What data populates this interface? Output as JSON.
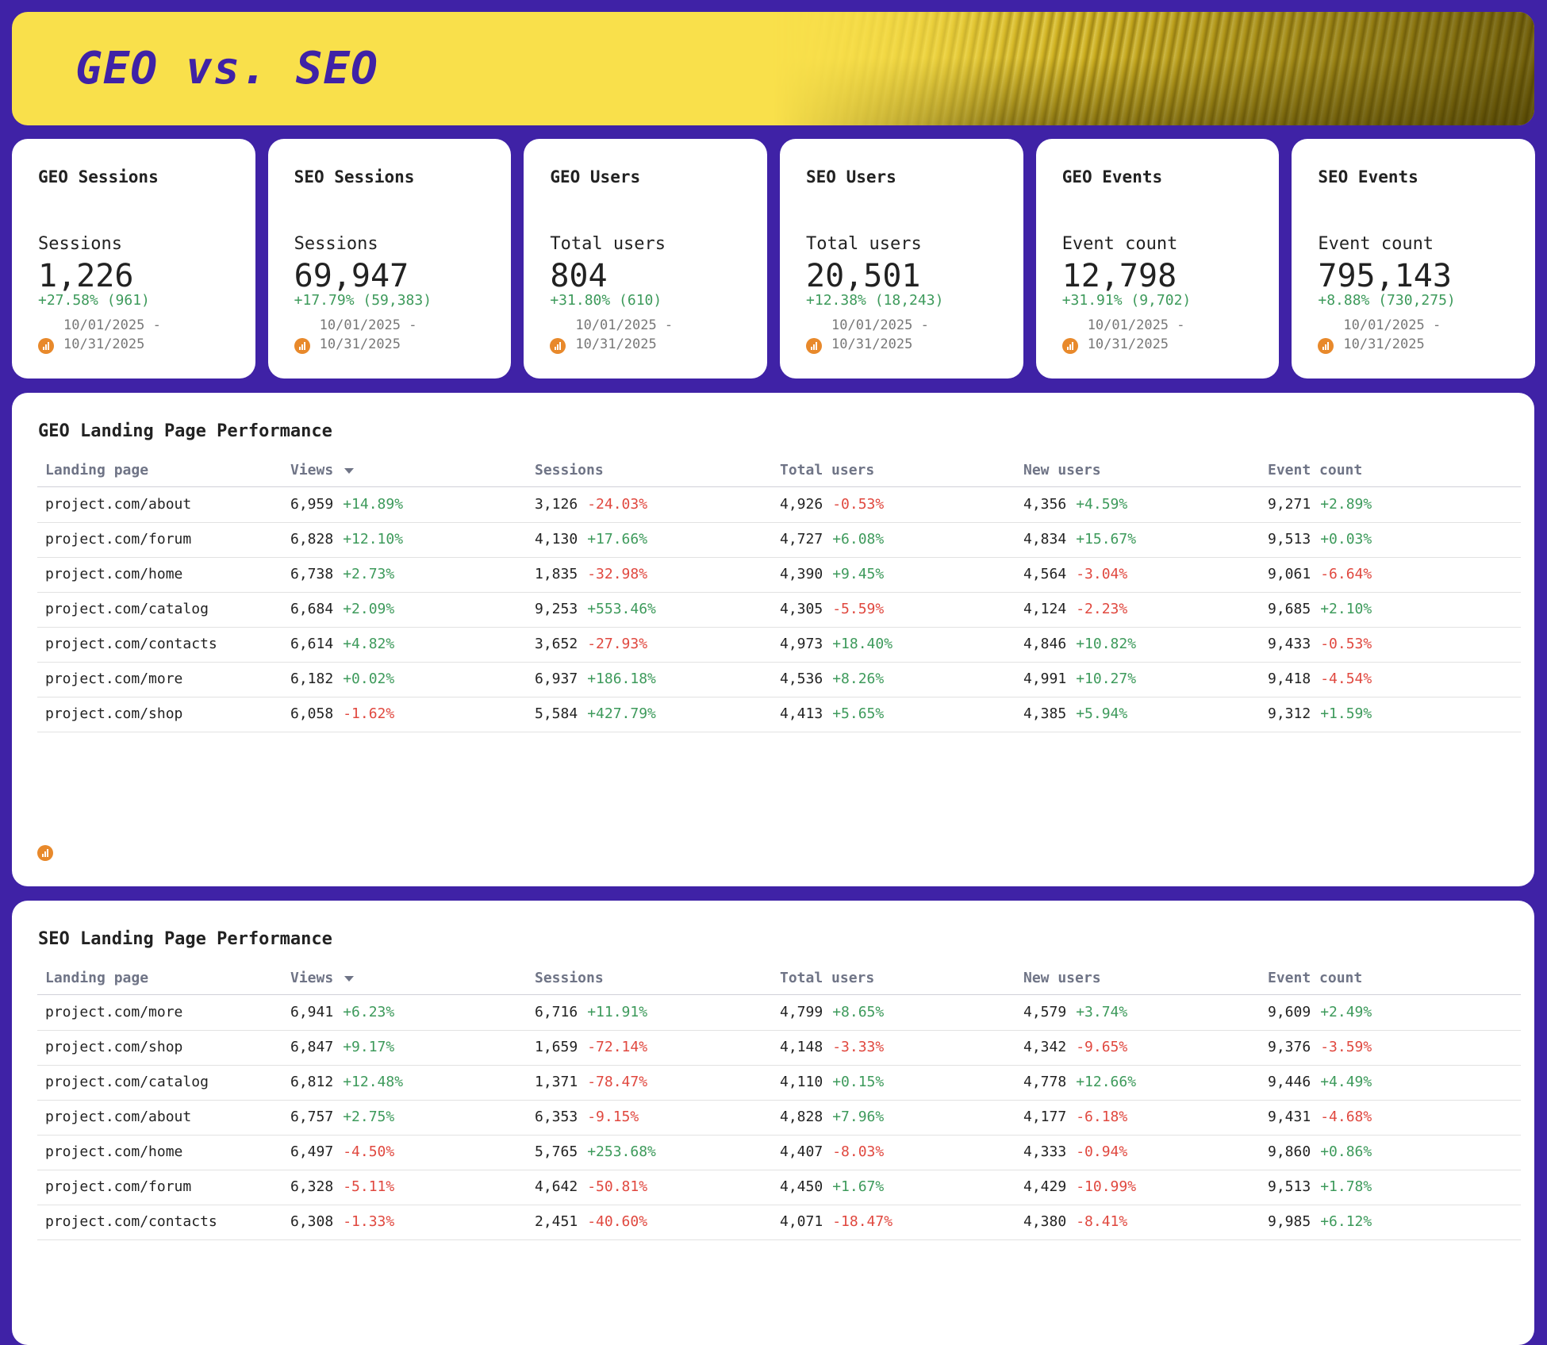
{
  "header": {
    "title": "GEO vs. SEO"
  },
  "cards": [
    {
      "title": "GEO Sessions",
      "metric": "Sessions",
      "value": "1,226",
      "change": "+27.58% (961)",
      "date_from": "10/01/2025 -",
      "date_to": "10/31/2025"
    },
    {
      "title": "SEO Sessions",
      "metric": "Sessions",
      "value": "69,947",
      "change": "+17.79% (59,383)",
      "date_from": "10/01/2025 -",
      "date_to": "10/31/2025"
    },
    {
      "title": "GEO Users",
      "metric": "Total users",
      "value": "804",
      "change": "+31.80% (610)",
      "date_from": "10/01/2025 -",
      "date_to": "10/31/2025"
    },
    {
      "title": "SEO Users",
      "metric": "Total users",
      "value": "20,501",
      "change": "+12.38% (18,243)",
      "date_from": "10/01/2025 -",
      "date_to": "10/31/2025"
    },
    {
      "title": "GEO Events",
      "metric": "Event count",
      "value": "12,798",
      "change": "+31.91% (9,702)",
      "date_from": "10/01/2025 -",
      "date_to": "10/31/2025"
    },
    {
      "title": "SEO Events",
      "metric": "Event count",
      "value": "795,143",
      "change": "+8.88% (730,275)",
      "date_from": "10/01/2025 -",
      "date_to": "10/31/2025"
    }
  ],
  "tables": [
    {
      "title": "GEO Landing Page Performance",
      "columns": [
        "Landing page",
        "Views",
        "Sessions",
        "Total users",
        "New users",
        "Event count"
      ],
      "rows": [
        [
          "project.com/about",
          "6,959",
          "+14.89%",
          "3,126",
          "-24.03%",
          "4,926",
          "-0.53%",
          "4,356",
          "+4.59%",
          "9,271",
          "+2.89%"
        ],
        [
          "project.com/forum",
          "6,828",
          "+12.10%",
          "4,130",
          "+17.66%",
          "4,727",
          "+6.08%",
          "4,834",
          "+15.67%",
          "9,513",
          "+0.03%"
        ],
        [
          "project.com/home",
          "6,738",
          "+2.73%",
          "1,835",
          "-32.98%",
          "4,390",
          "+9.45%",
          "4,564",
          "-3.04%",
          "9,061",
          "-6.64%"
        ],
        [
          "project.com/catalog",
          "6,684",
          "+2.09%",
          "9,253",
          "+553.46%",
          "4,305",
          "-5.59%",
          "4,124",
          "-2.23%",
          "9,685",
          "+2.10%"
        ],
        [
          "project.com/contacts",
          "6,614",
          "+4.82%",
          "3,652",
          "-27.93%",
          "4,973",
          "+18.40%",
          "4,846",
          "+10.82%",
          "9,433",
          "-0.53%"
        ],
        [
          "project.com/more",
          "6,182",
          "+0.02%",
          "6,937",
          "+186.18%",
          "4,536",
          "+8.26%",
          "4,991",
          "+10.27%",
          "9,418",
          "-4.54%"
        ],
        [
          "project.com/shop",
          "6,058",
          "-1.62%",
          "5,584",
          "+427.79%",
          "4,413",
          "+5.65%",
          "4,385",
          "+5.94%",
          "9,312",
          "+1.59%"
        ]
      ]
    },
    {
      "title": "SEO Landing Page Performance",
      "columns": [
        "Landing page",
        "Views",
        "Sessions",
        "Total users",
        "New users",
        "Event count"
      ],
      "rows": [
        [
          "project.com/more",
          "6,941",
          "+6.23%",
          "6,716",
          "+11.91%",
          "4,799",
          "+8.65%",
          "4,579",
          "+3.74%",
          "9,609",
          "+2.49%"
        ],
        [
          "project.com/shop",
          "6,847",
          "+9.17%",
          "1,659",
          "-72.14%",
          "4,148",
          "-3.33%",
          "4,342",
          "-9.65%",
          "9,376",
          "-3.59%"
        ],
        [
          "project.com/catalog",
          "6,812",
          "+12.48%",
          "1,371",
          "-78.47%",
          "4,110",
          "+0.15%",
          "4,778",
          "+12.66%",
          "9,446",
          "+4.49%"
        ],
        [
          "project.com/about",
          "6,757",
          "+2.75%",
          "6,353",
          "-9.15%",
          "4,828",
          "+7.96%",
          "4,177",
          "-6.18%",
          "9,431",
          "-4.68%"
        ],
        [
          "project.com/home",
          "6,497",
          "-4.50%",
          "5,765",
          "+253.68%",
          "4,407",
          "-8.03%",
          "4,333",
          "-0.94%",
          "9,860",
          "+0.86%"
        ],
        [
          "project.com/forum",
          "6,328",
          "-5.11%",
          "4,642",
          "-50.81%",
          "4,450",
          "+1.67%",
          "4,429",
          "-10.99%",
          "9,513",
          "+1.78%"
        ],
        [
          "project.com/contacts",
          "6,308",
          "-1.33%",
          "2,451",
          "-40.60%",
          "4,071",
          "-18.47%",
          "4,380",
          "-8.41%",
          "9,985",
          "+6.12%"
        ]
      ]
    }
  ]
}
